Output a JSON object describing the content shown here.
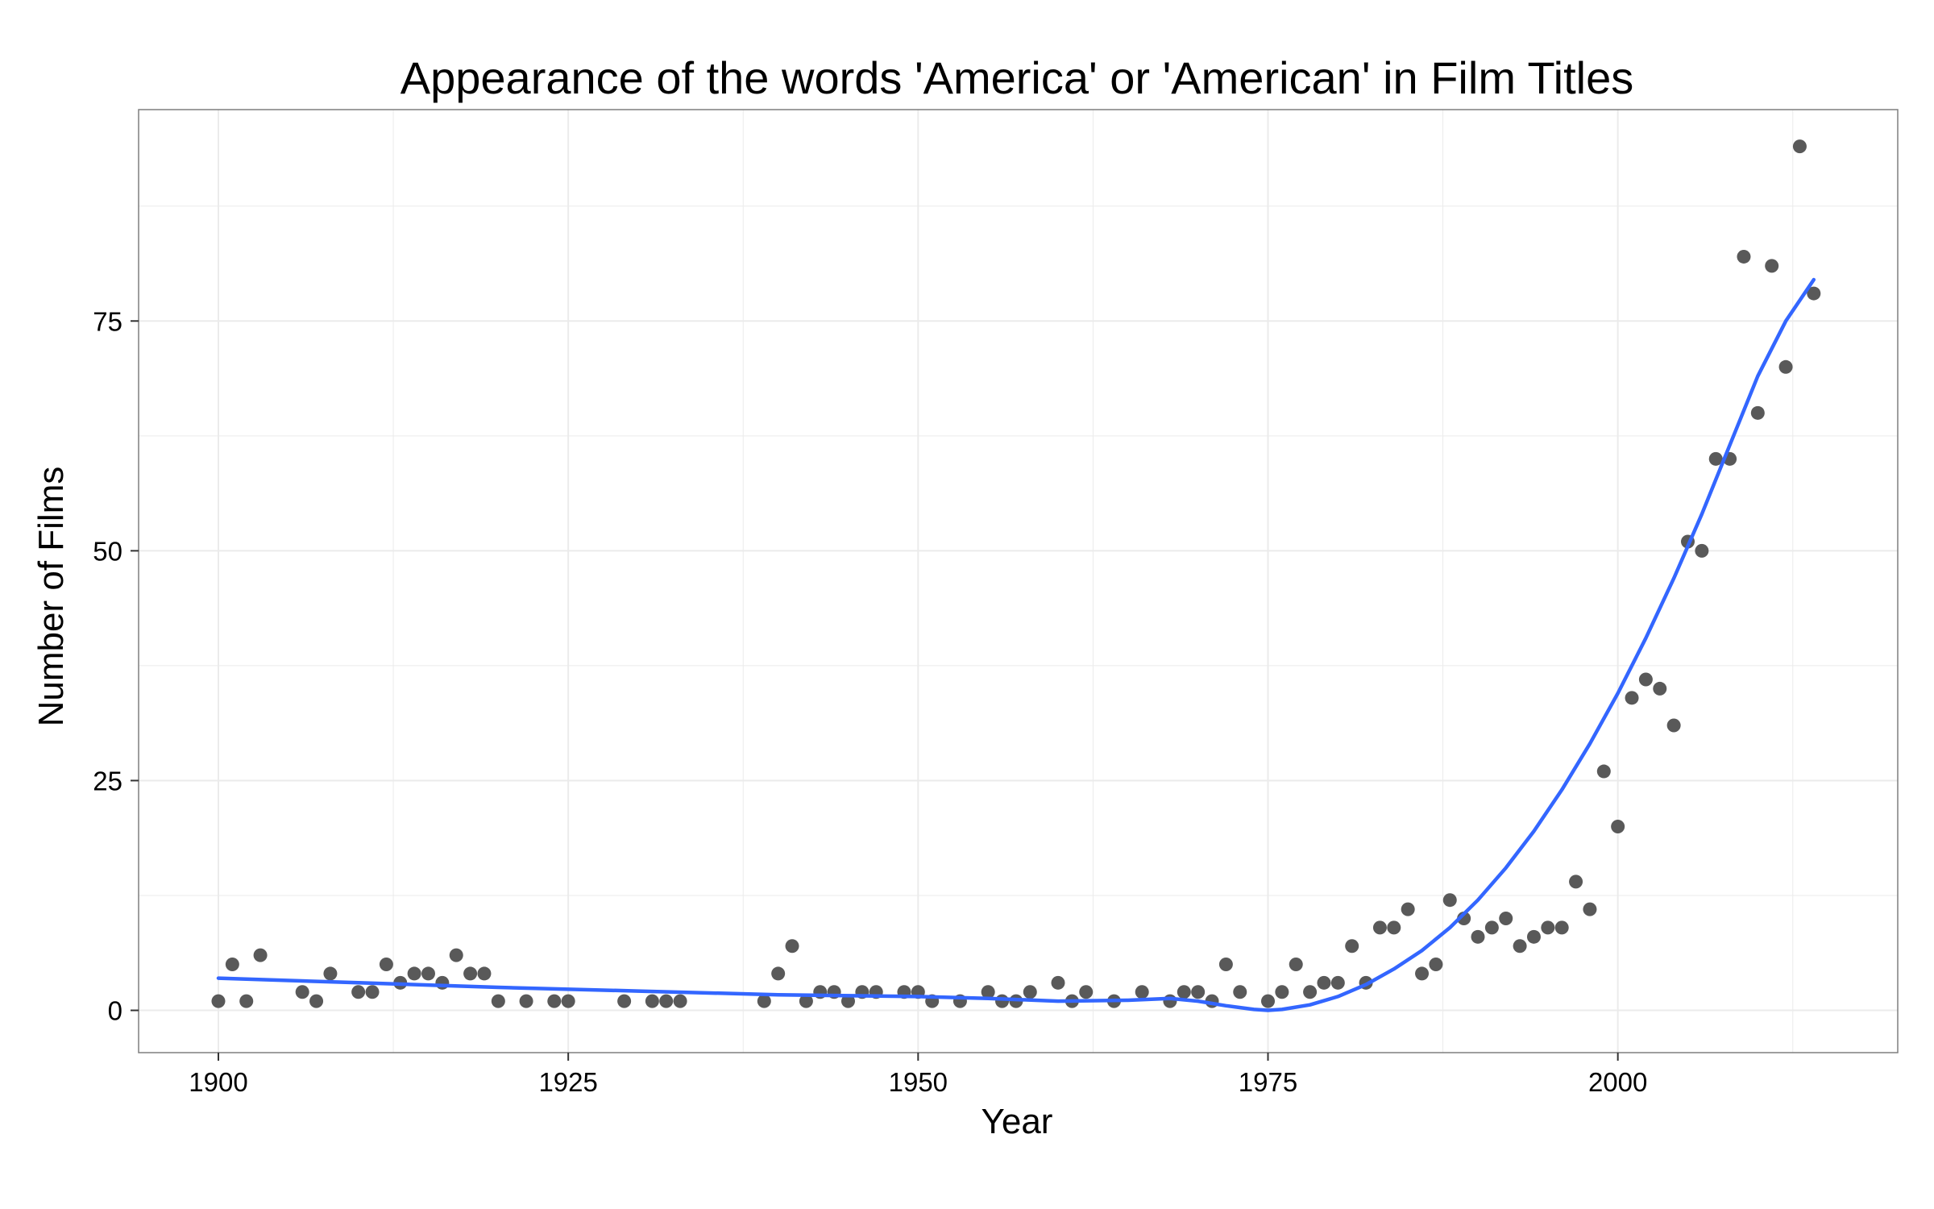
{
  "chart_data": {
    "type": "scatter",
    "title": "Appearance of the words 'America' or 'American' in Film Titles",
    "xlabel": "Year",
    "ylabel": "Number of Films",
    "xlim": [
      1894.3,
      2020
    ],
    "ylim": [
      -4.6,
      98
    ],
    "xticks": [
      "1900",
      "1925",
      "1950",
      "1975",
      "2000"
    ],
    "yticks": [
      "0",
      "25",
      "50",
      "75"
    ],
    "grid": true,
    "colors": {
      "points": "#595959",
      "trend": "#3366ff",
      "grid": "#ebebeb",
      "border": "#7f7f7f"
    },
    "points": [
      [
        1900,
        1
      ],
      [
        1901,
        5
      ],
      [
        1902,
        1
      ],
      [
        1903,
        6
      ],
      [
        1906,
        2
      ],
      [
        1907,
        1
      ],
      [
        1908,
        4
      ],
      [
        1910,
        2
      ],
      [
        1911,
        2
      ],
      [
        1912,
        5
      ],
      [
        1913,
        3
      ],
      [
        1914,
        4
      ],
      [
        1915,
        4
      ],
      [
        1916,
        3
      ],
      [
        1917,
        6
      ],
      [
        1918,
        4
      ],
      [
        1919,
        4
      ],
      [
        1920,
        1
      ],
      [
        1922,
        1
      ],
      [
        1924,
        1
      ],
      [
        1925,
        1
      ],
      [
        1929,
        1
      ],
      [
        1931,
        1
      ],
      [
        1932,
        1
      ],
      [
        1933,
        1
      ],
      [
        1939,
        1
      ],
      [
        1940,
        4
      ],
      [
        1941,
        7
      ],
      [
        1942,
        1
      ],
      [
        1943,
        2
      ],
      [
        1944,
        2
      ],
      [
        1945,
        1
      ],
      [
        1946,
        2
      ],
      [
        1947,
        2
      ],
      [
        1949,
        2
      ],
      [
        1950,
        2
      ],
      [
        1951,
        1
      ],
      [
        1953,
        1
      ],
      [
        1955,
        2
      ],
      [
        1956,
        1
      ],
      [
        1957,
        1
      ],
      [
        1958,
        2
      ],
      [
        1960,
        3
      ],
      [
        1961,
        1
      ],
      [
        1962,
        2
      ],
      [
        1964,
        1
      ],
      [
        1966,
        2
      ],
      [
        1968,
        1
      ],
      [
        1969,
        2
      ],
      [
        1970,
        2
      ],
      [
        1971,
        1
      ],
      [
        1972,
        5
      ],
      [
        1973,
        2
      ],
      [
        1975,
        1
      ],
      [
        1976,
        2
      ],
      [
        1977,
        5
      ],
      [
        1978,
        2
      ],
      [
        1979,
        3
      ],
      [
        1980,
        3
      ],
      [
        1981,
        7
      ],
      [
        1982,
        3
      ],
      [
        1983,
        9
      ],
      [
        1984,
        9
      ],
      [
        1985,
        11
      ],
      [
        1986,
        4
      ],
      [
        1987,
        5
      ],
      [
        1988,
        12
      ],
      [
        1989,
        10
      ],
      [
        1990,
        8
      ],
      [
        1991,
        9
      ],
      [
        1992,
        10
      ],
      [
        1993,
        7
      ],
      [
        1994,
        8
      ],
      [
        1995,
        9
      ],
      [
        1996,
        9
      ],
      [
        1997,
        14
      ],
      [
        1998,
        11
      ],
      [
        1999,
        26
      ],
      [
        2000,
        20
      ],
      [
        2001,
        34
      ],
      [
        2002,
        36
      ],
      [
        2003,
        35
      ],
      [
        2004,
        31
      ],
      [
        2005,
        51
      ],
      [
        2006,
        50
      ],
      [
        2007,
        60
      ],
      [
        2008,
        60
      ],
      [
        2009,
        82
      ],
      [
        2010,
        65
      ],
      [
        2011,
        81
      ],
      [
        2012,
        70
      ],
      [
        2013,
        94
      ],
      [
        2014,
        78
      ]
    ],
    "trend": [
      [
        1900,
        3.5
      ],
      [
        1910,
        3.0
      ],
      [
        1920,
        2.5
      ],
      [
        1930,
        2.1
      ],
      [
        1940,
        1.7
      ],
      [
        1950,
        1.5
      ],
      [
        1955,
        1.3
      ],
      [
        1960,
        1.0
      ],
      [
        1965,
        1.1
      ],
      [
        1968,
        1.3
      ],
      [
        1970,
        1.0
      ],
      [
        1972,
        0.5
      ],
      [
        1974,
        0.1
      ],
      [
        1975,
        0.0
      ],
      [
        1976,
        0.1
      ],
      [
        1978,
        0.6
      ],
      [
        1980,
        1.5
      ],
      [
        1982,
        2.8
      ],
      [
        1984,
        4.5
      ],
      [
        1986,
        6.5
      ],
      [
        1988,
        9.0
      ],
      [
        1990,
        12.0
      ],
      [
        1992,
        15.5
      ],
      [
        1994,
        19.5
      ],
      [
        1996,
        24.0
      ],
      [
        1998,
        29.0
      ],
      [
        2000,
        34.5
      ],
      [
        2002,
        40.5
      ],
      [
        2004,
        47.0
      ],
      [
        2006,
        54.0
      ],
      [
        2008,
        61.5
      ],
      [
        2010,
        69.0
      ],
      [
        2012,
        75.0
      ],
      [
        2014,
        79.5
      ]
    ]
  }
}
